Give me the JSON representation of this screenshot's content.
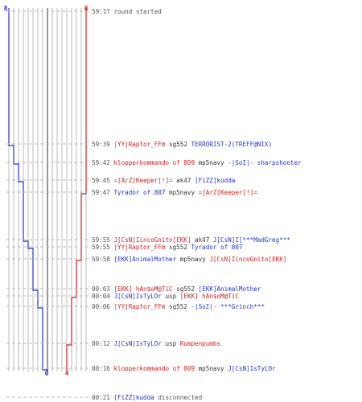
{
  "scores": {
    "left_start": "8",
    "right_start": "8",
    "left_end": "0",
    "right_end": "4"
  },
  "colors": {
    "left": "#2233cc",
    "right": "#cc2222",
    "grid": "#bbbbbb",
    "text": "#555555",
    "center": "#777777"
  },
  "events": [
    {
      "time": "59:17",
      "kind": "text",
      "msg": "round started"
    },
    {
      "time": "59:39",
      "kind": "kill",
      "killer": "|YY|Raptor_FFm",
      "killer_side": "red",
      "weapon": "sg552",
      "victim": "TERRORIST-2(TREFF@NIX)",
      "victim_side": "blue"
    },
    {
      "time": "59:42",
      "kind": "kill",
      "killer": "klopperkommando of 809",
      "killer_side": "red",
      "weapon": "mp5navy",
      "victim": "-|SoI|- sharpshooter",
      "victim_side": "blue"
    },
    {
      "time": "59:45",
      "kind": "kill",
      "killer": "=[ArZ]Keeper[!]=",
      "killer_side": "red",
      "weapon": "ak47",
      "victim": "[FiZZ]kudda",
      "victim_side": "blue"
    },
    {
      "time": "59:47",
      "kind": "kill",
      "killer": "Tyrador of 807",
      "killer_side": "blue",
      "weapon": "mp5navy",
      "victim": "=[ArZ]Keeper[!]=",
      "victim_side": "red"
    },
    {
      "time": "59:55",
      "kind": "kill",
      "killer": "J[CsN]IincoGnito[EKK]",
      "killer_side": "red",
      "weapon": "ak47",
      "victim": "J[CsN]I[***MadGreg***",
      "victim_side": "blue"
    },
    {
      "time": "59:55",
      "kind": "kill",
      "killer": "|YY|Raptor_FFm",
      "killer_side": "red",
      "weapon": "sg552",
      "victim": "Tyrador of 807",
      "victim_side": "blue"
    },
    {
      "time": "59:58",
      "kind": "kill",
      "killer": "[EKK]AnimalMother",
      "killer_side": "blue",
      "weapon": "mp5navy",
      "victim": "J[CsN]IincoGnito[EKK]",
      "victim_side": "red"
    },
    {
      "time": "00:03",
      "kind": "kill",
      "killer": "[EKK] hAn$oM@TiC",
      "killer_side": "red",
      "weapon": "sg552",
      "victim": "[EKK]AnimalMother",
      "victim_side": "blue"
    },
    {
      "time": "00:04",
      "kind": "kill",
      "killer": "J[CsN]IsTyLOr",
      "killer_side": "blue",
      "weapon": "usp",
      "victim": "[EKK] hAn$oM@TiC",
      "victim_side": "red"
    },
    {
      "time": "00:06",
      "kind": "kill",
      "killer": "|YY|Raptor_FFm",
      "killer_side": "red",
      "weapon": "sg552",
      "victim": "-|SoI|- ***Grinch***",
      "victim_side": "blue"
    },
    {
      "time": "00:12",
      "kind": "kill",
      "killer": "J[CsN]IsTyLOr",
      "killer_side": "blue",
      "weapon": "usp",
      "victim": "Rumpenpumbs",
      "victim_side": "red"
    },
    {
      "time": "00:16",
      "kind": "kill",
      "killer": "klopperkommando of 809",
      "killer_side": "red",
      "weapon": "mp5navy",
      "victim": "J[CsN]IsTyLOr",
      "victim_side": "blue"
    },
    {
      "time": "00:21",
      "kind": "disc",
      "player": "[FiZZ]kudda",
      "player_side": "blue",
      "msg": "disconnected"
    }
  ]
}
